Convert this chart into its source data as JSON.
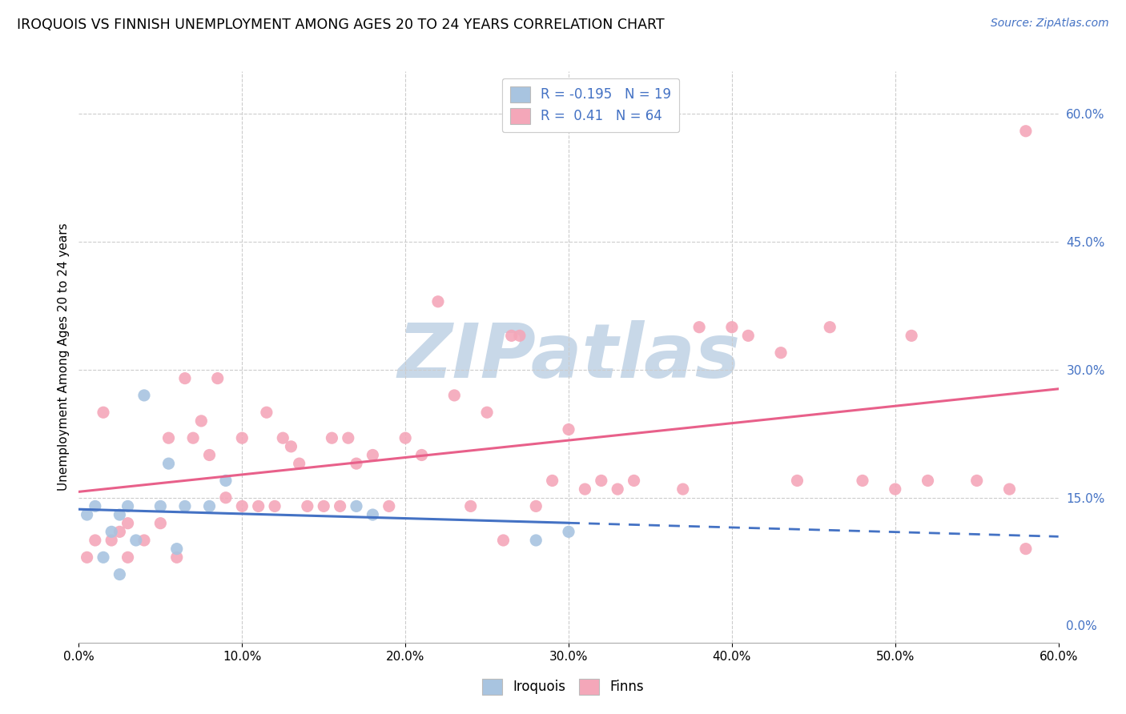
{
  "title": "IROQUOIS VS FINNISH UNEMPLOYMENT AMONG AGES 20 TO 24 YEARS CORRELATION CHART",
  "source": "Source: ZipAtlas.com",
  "ylabel": "Unemployment Among Ages 20 to 24 years",
  "xlim": [
    0.0,
    0.6
  ],
  "ylim": [
    -0.02,
    0.65
  ],
  "plot_ylim": [
    -0.02,
    0.65
  ],
  "x_ticks": [
    0.0,
    0.1,
    0.2,
    0.3,
    0.4,
    0.5,
    0.6
  ],
  "x_tick_labels": [
    "0.0%",
    "",
    "",
    "",
    "",
    "",
    "60.0%"
  ],
  "y_ticks_right": [
    0.0,
    0.15,
    0.3,
    0.45,
    0.6
  ],
  "y_tick_labels_right": [
    "0.0%",
    "15.0%",
    "30.0%",
    "45.0%",
    "60.0%"
  ],
  "iroquois_color": "#a8c4e0",
  "finns_color": "#f4a7b9",
  "iroquois_line_color": "#4472c4",
  "finns_line_color": "#e8608a",
  "iroquois_R": -0.195,
  "iroquois_N": 19,
  "finns_R": 0.41,
  "finns_N": 64,
  "watermark": "ZIPatlas",
  "watermark_color": "#c8d8e8",
  "iroquois_x": [
    0.005,
    0.01,
    0.015,
    0.02,
    0.025,
    0.025,
    0.03,
    0.035,
    0.04,
    0.05,
    0.055,
    0.06,
    0.065,
    0.08,
    0.09,
    0.17,
    0.18,
    0.28,
    0.3
  ],
  "iroquois_y": [
    0.13,
    0.14,
    0.08,
    0.11,
    0.13,
    0.06,
    0.14,
    0.1,
    0.27,
    0.14,
    0.19,
    0.09,
    0.14,
    0.14,
    0.17,
    0.14,
    0.13,
    0.1,
    0.11
  ],
  "finns_x": [
    0.005,
    0.01,
    0.015,
    0.02,
    0.025,
    0.03,
    0.03,
    0.04,
    0.05,
    0.055,
    0.06,
    0.065,
    0.07,
    0.075,
    0.08,
    0.085,
    0.09,
    0.1,
    0.1,
    0.11,
    0.115,
    0.12,
    0.125,
    0.13,
    0.135,
    0.14,
    0.15,
    0.155,
    0.16,
    0.165,
    0.17,
    0.18,
    0.19,
    0.2,
    0.21,
    0.22,
    0.23,
    0.24,
    0.25,
    0.26,
    0.265,
    0.27,
    0.28,
    0.29,
    0.3,
    0.31,
    0.32,
    0.33,
    0.34,
    0.37,
    0.38,
    0.4,
    0.41,
    0.43,
    0.44,
    0.46,
    0.48,
    0.5,
    0.51,
    0.52,
    0.55,
    0.57,
    0.58,
    0.58
  ],
  "finns_y": [
    0.08,
    0.1,
    0.25,
    0.1,
    0.11,
    0.12,
    0.08,
    0.1,
    0.12,
    0.22,
    0.08,
    0.29,
    0.22,
    0.24,
    0.2,
    0.29,
    0.15,
    0.22,
    0.14,
    0.14,
    0.25,
    0.14,
    0.22,
    0.21,
    0.19,
    0.14,
    0.14,
    0.22,
    0.14,
    0.22,
    0.19,
    0.2,
    0.14,
    0.22,
    0.2,
    0.38,
    0.27,
    0.14,
    0.25,
    0.1,
    0.34,
    0.34,
    0.14,
    0.17,
    0.23,
    0.16,
    0.17,
    0.16,
    0.17,
    0.16,
    0.35,
    0.35,
    0.34,
    0.32,
    0.17,
    0.35,
    0.17,
    0.16,
    0.34,
    0.17,
    0.17,
    0.16,
    0.58,
    0.09
  ]
}
